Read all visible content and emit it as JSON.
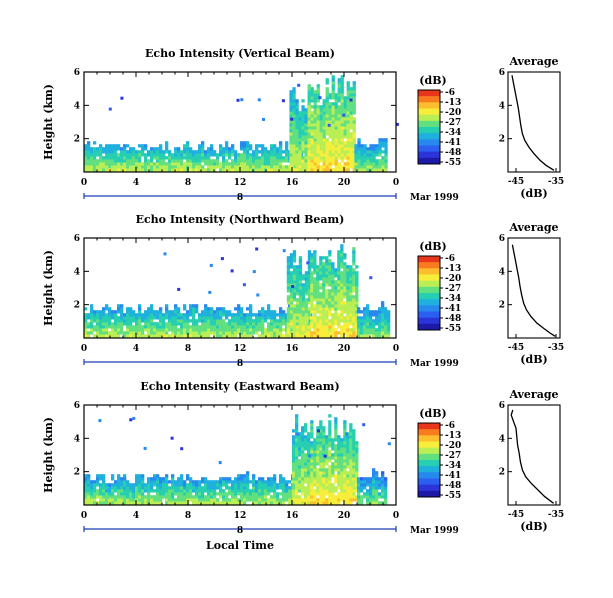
{
  "chart_data": [
    {
      "type": "heatmap",
      "title": "Echo Intensity (Vertical Beam)",
      "ylabel": "Height (km)",
      "x_ticks": [
        "0",
        "4",
        "8",
        "12",
        "16",
        "20",
        "0"
      ],
      "y_ticks": [
        "2",
        "4",
        "6"
      ],
      "date_marker": "8",
      "date_label": "Mar 1999",
      "ylim": [
        0,
        6
      ],
      "xlim": [
        0,
        24
      ],
      "colorbar": {
        "unit_label": "(dB)",
        "tick_labels": [
          "-6",
          "-13",
          "-20",
          "-27",
          "-34",
          "-41",
          "-48",
          "-55"
        ],
        "colors": [
          "#e8361c",
          "#f97b20",
          "#fcbe2f",
          "#f6ee3a",
          "#b9ee55",
          "#62e080",
          "#27cfb2",
          "#1fb0de",
          "#2788ee",
          "#2c5ef0",
          "#2a34d8",
          "#1d1aa8"
        ]
      },
      "echo_regions": [
        {
          "x0": 0.0,
          "x1": 17.5,
          "top_km": 1.6,
          "base_level": -38
        },
        {
          "x0": 15.8,
          "x1": 17.2,
          "top_km": 4.8,
          "base_level": -36
        },
        {
          "x0": 17.2,
          "x1": 20.8,
          "top_km": 5.2,
          "base_level": -32
        },
        {
          "x0": 20.8,
          "x1": 23.2,
          "top_km": 1.8,
          "base_level": -40
        }
      ],
      "profile": {
        "title": "Average",
        "xlabel": "(dB)",
        "x_ticks": [
          "-45",
          "-35"
        ],
        "y_ticks": [
          "2",
          "4",
          "6"
        ],
        "xlim": [
          -47,
          -34
        ],
        "ylim": [
          0,
          6
        ],
        "points": [
          [
            -46.0,
            5.8
          ],
          [
            -45.6,
            5.3
          ],
          [
            -45.2,
            4.8
          ],
          [
            -44.8,
            4.3
          ],
          [
            -44.4,
            3.8
          ],
          [
            -44.1,
            3.3
          ],
          [
            -43.8,
            2.8
          ],
          [
            -43.4,
            2.3
          ],
          [
            -42.8,
            1.9
          ],
          [
            -41.8,
            1.5
          ],
          [
            -40.5,
            1.1
          ],
          [
            -39.0,
            0.7
          ],
          [
            -37.5,
            0.4
          ],
          [
            -35.5,
            0.1
          ]
        ]
      }
    },
    {
      "type": "heatmap",
      "title": "Echo Intensity (Northward Beam)",
      "ylabel": "Height (km)",
      "x_ticks": [
        "0",
        "4",
        "8",
        "12",
        "16",
        "20",
        "0"
      ],
      "y_ticks": [
        "2",
        "4",
        "6"
      ],
      "date_marker": "8",
      "date_label": "Mar 1999",
      "ylim": [
        0,
        6
      ],
      "xlim": [
        0,
        24
      ],
      "colorbar": {
        "unit_label": "(dB)",
        "tick_labels": [
          "-6",
          "-13",
          "-20",
          "-27",
          "-34",
          "-41",
          "-48",
          "-55"
        ],
        "colors": [
          "#e8361c",
          "#f97b20",
          "#fcbe2f",
          "#f6ee3a",
          "#b9ee55",
          "#62e080",
          "#27cfb2",
          "#1fb0de",
          "#2788ee",
          "#2c5ef0",
          "#2a34d8",
          "#1d1aa8"
        ]
      },
      "echo_regions": [
        {
          "x0": 0.0,
          "x1": 17.5,
          "top_km": 1.8,
          "base_level": -38
        },
        {
          "x0": 15.6,
          "x1": 17.4,
          "top_km": 4.9,
          "base_level": -36
        },
        {
          "x0": 17.4,
          "x1": 21.0,
          "top_km": 5.1,
          "base_level": -33
        },
        {
          "x0": 21.0,
          "x1": 23.5,
          "top_km": 2.0,
          "base_level": -41
        }
      ],
      "profile": {
        "title": "Average",
        "xlabel": "(dB)",
        "x_ticks": [
          "-45",
          "-35"
        ],
        "y_ticks": [
          "2",
          "4",
          "6"
        ],
        "xlim": [
          -47,
          -34
        ],
        "ylim": [
          0,
          6
        ],
        "points": [
          [
            -45.9,
            5.6
          ],
          [
            -45.5,
            5.1
          ],
          [
            -45.1,
            4.6
          ],
          [
            -44.7,
            4.1
          ],
          [
            -44.3,
            3.6
          ],
          [
            -44.0,
            3.1
          ],
          [
            -43.6,
            2.6
          ],
          [
            -43.1,
            2.1
          ],
          [
            -42.4,
            1.7
          ],
          [
            -41.3,
            1.3
          ],
          [
            -39.8,
            0.9
          ],
          [
            -38.2,
            0.6
          ],
          [
            -36.5,
            0.3
          ],
          [
            -35.2,
            0.1
          ]
        ]
      }
    },
    {
      "type": "heatmap",
      "title": "Echo Intensity (Eastward Beam)",
      "ylabel": "Height (km)",
      "x_ticks": [
        "0",
        "4",
        "8",
        "12",
        "16",
        "20",
        "0"
      ],
      "y_ticks": [
        "2",
        "4",
        "6"
      ],
      "date_marker": "8",
      "date_label": "Mar 1999",
      "xlabel": "Local Time",
      "ylim": [
        0,
        6
      ],
      "xlim": [
        0,
        24
      ],
      "colorbar": {
        "unit_label": "(dB)",
        "tick_labels": [
          "-6",
          "-13",
          "-20",
          "-27",
          "-34",
          "-41",
          "-48",
          "-55"
        ],
        "colors": [
          "#e8361c",
          "#f97b20",
          "#fcbe2f",
          "#f6ee3a",
          "#b9ee55",
          "#62e080",
          "#27cfb2",
          "#1fb0de",
          "#2788ee",
          "#2c5ef0",
          "#2a34d8",
          "#1d1aa8"
        ]
      },
      "echo_regions": [
        {
          "x0": 0.0,
          "x1": 16.0,
          "top_km": 1.7,
          "base_level": -39
        },
        {
          "x0": 16.0,
          "x1": 17.4,
          "top_km": 4.9,
          "base_level": -36
        },
        {
          "x0": 17.4,
          "x1": 21.0,
          "top_km": 5.0,
          "base_level": -33
        },
        {
          "x0": 21.0,
          "x1": 23.3,
          "top_km": 2.0,
          "base_level": -42
        }
      ],
      "profile": {
        "title": "Average",
        "xlabel": "(dB)",
        "x_ticks": [
          "-45",
          "-35"
        ],
        "y_ticks": [
          "2",
          "4",
          "6"
        ],
        "xlim": [
          -47,
          -34
        ],
        "ylim": [
          0,
          6
        ],
        "points": [
          [
            -45.8,
            5.7
          ],
          [
            -46.2,
            5.4
          ],
          [
            -45.6,
            5.0
          ],
          [
            -45.0,
            4.6
          ],
          [
            -44.8,
            4.1
          ],
          [
            -44.6,
            3.6
          ],
          [
            -44.2,
            3.1
          ],
          [
            -43.9,
            2.6
          ],
          [
            -43.4,
            2.1
          ],
          [
            -42.6,
            1.7
          ],
          [
            -41.2,
            1.3
          ],
          [
            -39.5,
            0.9
          ],
          [
            -37.8,
            0.5
          ],
          [
            -35.6,
            0.1
          ]
        ]
      }
    }
  ]
}
